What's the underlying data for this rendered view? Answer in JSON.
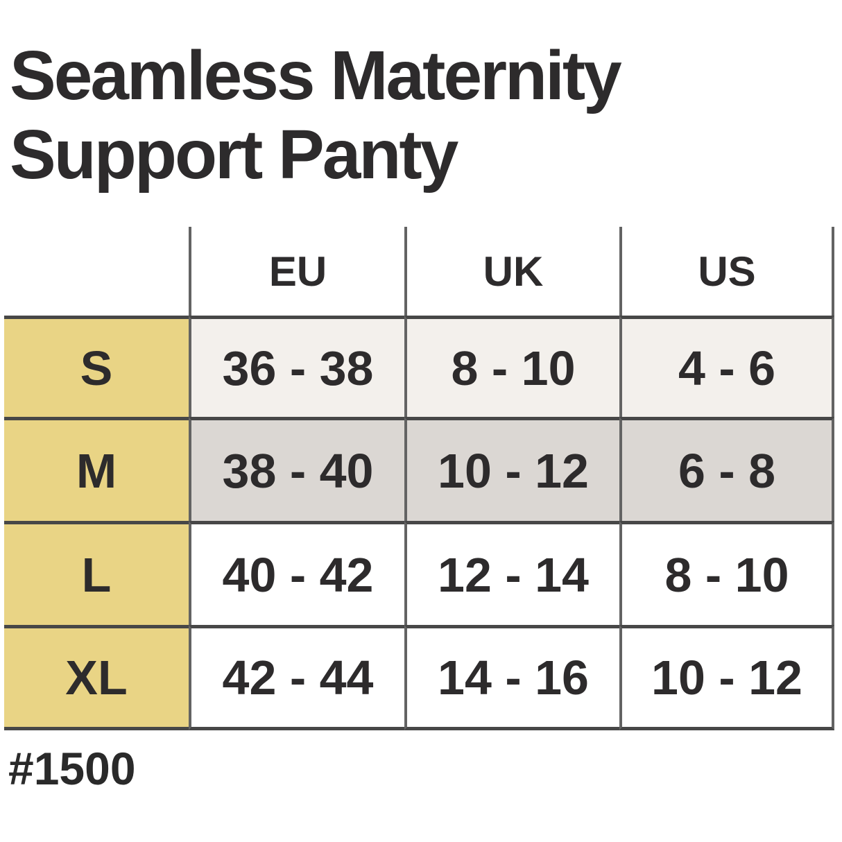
{
  "title": {
    "line1": "Seamless Maternity",
    "line2": "Support Panty"
  },
  "product_code": "#1500",
  "chart_data": {
    "type": "table",
    "title": "Seamless Maternity Support Panty",
    "columns": [
      "",
      "EU",
      "UK",
      "US"
    ],
    "rows": [
      [
        "S",
        "36 - 38",
        "8 - 10",
        "4 - 6"
      ],
      [
        "M",
        "38 - 40",
        "10 - 12",
        "6 - 8"
      ],
      [
        "L",
        "40 - 42",
        "12 - 14",
        "8 - 10"
      ],
      [
        "XL",
        "42 - 44",
        "14 - 16",
        "10 - 12"
      ]
    ]
  },
  "table": {
    "headers": {
      "eu": "EU",
      "uk": "UK",
      "us": "US"
    },
    "rows": {
      "s": {
        "size": "S",
        "eu": "36 - 38",
        "uk": "8 - 10",
        "us": "4 - 6"
      },
      "m": {
        "size": "M",
        "eu": "38 - 40",
        "uk": "10 - 12",
        "us": "6 - 8"
      },
      "l": {
        "size": "L",
        "eu": "40 - 42",
        "uk": "12 - 14",
        "us": "8 - 10"
      },
      "xl": {
        "size": "XL",
        "eu": "42 - 44",
        "uk": "14 - 16",
        "us": "10 - 12"
      }
    }
  },
  "colors": {
    "size_label_bg": "#e9d485",
    "row_s_bg": "#f3f0ec",
    "row_m_bg": "#dbd7d3",
    "row_l_xl_bg": "#ffffff",
    "horizontal_line": "#474747",
    "vertical_line": "#636363",
    "text": "#2d2b2c",
    "background": "#ffffff"
  }
}
